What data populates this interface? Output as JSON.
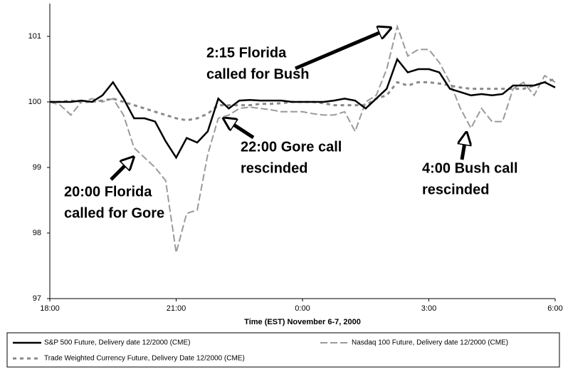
{
  "chart_data": {
    "type": "line",
    "xlabel": "Time (EST) November 6-7, 2000",
    "x": [
      0,
      0.25,
      0.5,
      0.75,
      1,
      1.25,
      1.5,
      1.75,
      2,
      2.25,
      2.5,
      2.75,
      3,
      3.25,
      3.5,
      3.75,
      4,
      4.25,
      4.5,
      4.75,
      5,
      5.25,
      5.5,
      5.75,
      6,
      6.25,
      6.5,
      6.75,
      7,
      7.25,
      7.5,
      7.75,
      8,
      8.25,
      8.5,
      8.75,
      9,
      9.25,
      9.5,
      9.75,
      10,
      10.25,
      10.5,
      10.75,
      11,
      11.25,
      11.5,
      11.75,
      12
    ],
    "xlim": [
      0,
      12
    ],
    "xticks": [
      {
        "value": 0,
        "label": "18:00"
      },
      {
        "value": 3,
        "label": "21:00"
      },
      {
        "value": 6,
        "label": "0:00"
      },
      {
        "value": 9,
        "label": "3:00"
      },
      {
        "value": 12,
        "label": "6:00"
      }
    ],
    "ylim": [
      97,
      101.5
    ],
    "yticks": [
      97,
      98,
      99,
      100,
      101
    ],
    "grid": false,
    "series": [
      {
        "name": "S&P 500 Future, Delivery date 12/2000 (CME)",
        "color": "#000000",
        "style": "solid",
        "values": [
          100,
          100,
          100,
          100.02,
          100,
          100.1,
          100.3,
          100.05,
          99.75,
          99.75,
          99.7,
          99.4,
          99.15,
          99.45,
          99.38,
          99.55,
          100.05,
          99.9,
          100.02,
          100.03,
          100.02,
          100.02,
          100.02,
          100,
          100,
          100,
          100,
          100.02,
          100.05,
          100.02,
          99.9,
          100.05,
          100.2,
          100.65,
          100.45,
          100.5,
          100.5,
          100.45,
          100.2,
          100.15,
          100.1,
          100.12,
          100.1,
          100.12,
          100.25,
          100.25,
          100.25,
          100.3,
          100.22
        ]
      },
      {
        "name": "Nasdaq 100 Future, Delivery date 12/2000 (CME)",
        "color": "#9a9a9a",
        "style": "longdash",
        "values": [
          100,
          99.95,
          99.8,
          100,
          100.05,
          100,
          100.05,
          99.8,
          99.3,
          99.15,
          99.0,
          98.8,
          97.7,
          98.3,
          98.35,
          99.2,
          99.75,
          99.8,
          99.9,
          99.92,
          99.9,
          99.88,
          99.85,
          99.85,
          99.85,
          99.82,
          99.8,
          99.8,
          99.85,
          99.55,
          100.0,
          100.1,
          100.5,
          101.15,
          100.7,
          100.8,
          100.8,
          100.6,
          100.3,
          99.9,
          99.6,
          99.9,
          99.7,
          99.7,
          100.2,
          100.3,
          100.1,
          100.4,
          100.3
        ]
      },
      {
        "name": "Trade Weighted Currency Future, Delivery Date 12/2000 (CME)",
        "color": "#8a8a8a",
        "style": "shortdash",
        "values": [
          100,
          100,
          100.02,
          100,
          100,
          100.02,
          100.05,
          100,
          99.95,
          99.9,
          99.85,
          99.8,
          99.75,
          99.72,
          99.75,
          99.82,
          99.95,
          99.95,
          99.95,
          99.95,
          99.97,
          99.97,
          99.98,
          100,
          100,
          100,
          99.98,
          99.95,
          99.95,
          99.95,
          99.95,
          100.05,
          100.1,
          100.3,
          100.25,
          100.3,
          100.3,
          100.28,
          100.25,
          100.22,
          100.2,
          100.2,
          100.2,
          100.2,
          100.2,
          100.2,
          100.25,
          100.3,
          100.35
        ]
      }
    ],
    "annotations": [
      {
        "lines": [
          "2:15 Florida",
          "called for Bush"
        ]
      },
      {
        "lines": [
          "22:00 Gore call",
          "rescinded"
        ]
      },
      {
        "lines": [
          "20:00 Florida",
          "called for Gore"
        ]
      },
      {
        "lines": [
          "4:00 Bush call",
          "rescinded"
        ]
      }
    ]
  }
}
